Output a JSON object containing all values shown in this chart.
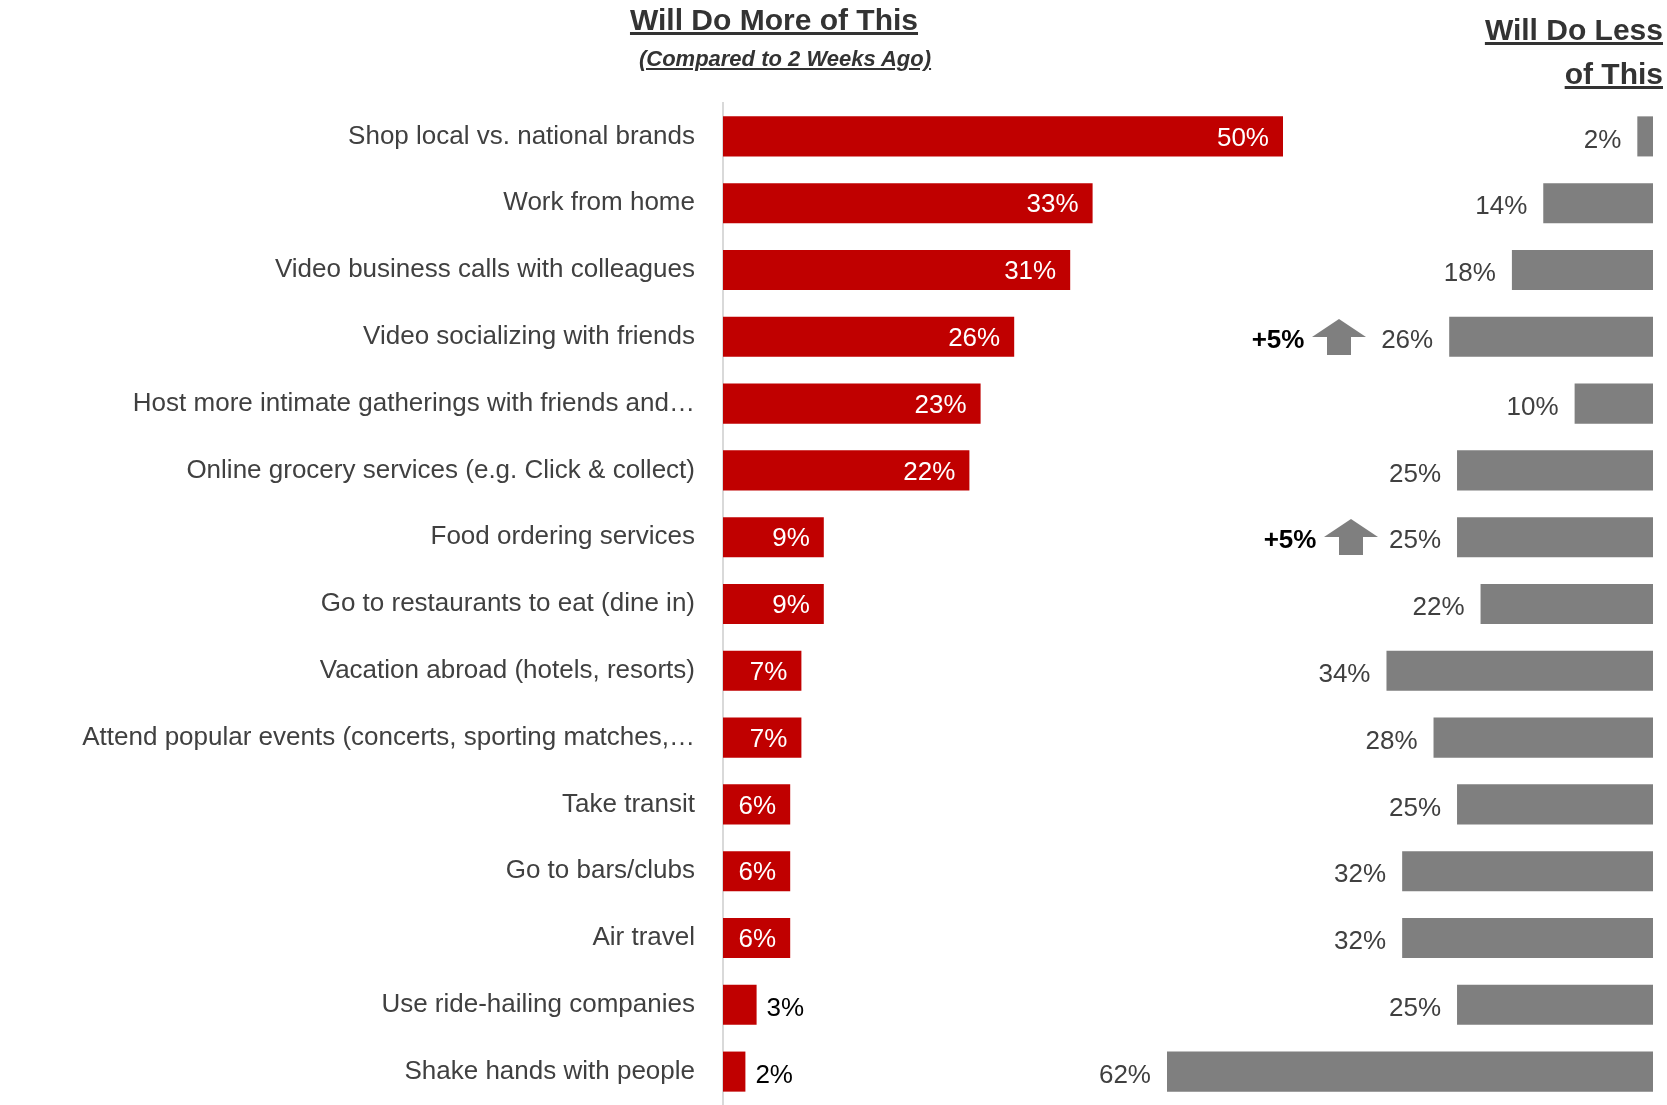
{
  "chart_data": [
    {
      "type": "bar",
      "orientation": "horizontal",
      "title": "Will Do More of This",
      "subtitle": "(Compared to 2 Weeks Ago)",
      "categories": [
        "Shop local vs. national brands",
        "Work from home",
        "Video business calls with colleagues",
        "Video socializing with friends",
        "Host more intimate gatherings with friends and…",
        "Online grocery services (e.g. Click & collect)",
        "Food ordering services",
        "Go to restaurants to eat (dine in)",
        "Vacation abroad (hotels, resorts)",
        "Attend popular events (concerts, sporting matches,…",
        "Take transit",
        "Go to bars/clubs",
        "Air travel",
        "Use ride-hailing companies",
        "Shake hands with people"
      ],
      "values": [
        50,
        33,
        31,
        26,
        23,
        22,
        9,
        9,
        7,
        7,
        6,
        6,
        6,
        3,
        2
      ],
      "value_labels": [
        "50%",
        "33%",
        "31%",
        "26%",
        "23%",
        "22%",
        "9%",
        "9%",
        "7%",
        "7%",
        "6%",
        "6%",
        "6%",
        "3%",
        "2%"
      ],
      "color": "#c00000",
      "xlim": [
        0,
        50
      ],
      "tick_labels": "y"
    },
    {
      "type": "bar",
      "orientation": "horizontal",
      "title": "Will Do Less of This",
      "categories": [
        null,
        null,
        null,
        null,
        null,
        null,
        null,
        null,
        null,
        null,
        null,
        null,
        null,
        null,
        null
      ],
      "values": [
        2,
        14,
        18,
        26,
        10,
        25,
        25,
        22,
        34,
        28,
        25,
        32,
        32,
        25,
        62
      ],
      "value_labels": [
        "2%",
        "14%",
        "18%",
        "26%",
        "10%",
        "25%",
        "25%",
        "22%",
        "34%",
        "28%",
        "25%",
        "32%",
        "32%",
        "25%",
        "62%"
      ],
      "color": "#7f7f7f",
      "xlim": [
        62,
        0
      ],
      "tick_labels": false,
      "annotations": [
        "+5%",
        "+5%"
      ]
    }
  ]
}
